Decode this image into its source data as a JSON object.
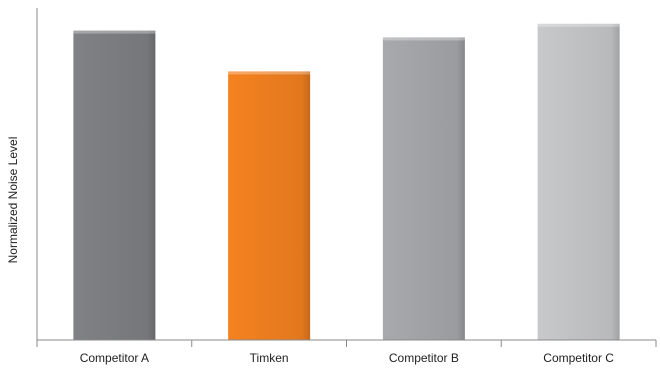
{
  "chart_data": {
    "type": "bar",
    "ylabel": "Normalized Noise Level",
    "xlabel": "",
    "categories": [
      "Competitor A",
      "Timken",
      "Competitor B",
      "Competitor C"
    ],
    "values": [
      0.91,
      0.79,
      0.89,
      0.93
    ],
    "ylim": [
      0,
      1
    ],
    "grid": false,
    "colors": [
      "#808184",
      "#f58220",
      "#a7a9ac",
      "#c8c9cb"
    ]
  }
}
